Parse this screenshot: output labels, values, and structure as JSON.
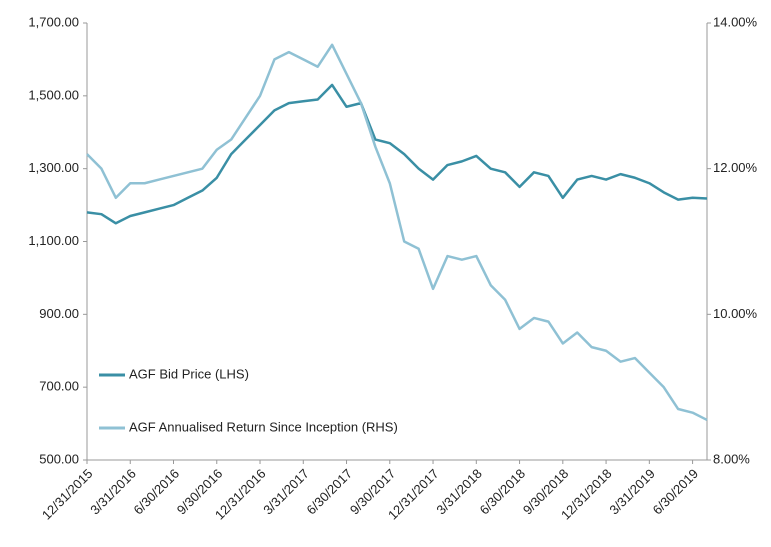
{
  "chart_data": {
    "type": "line",
    "categories": [
      "12/31/2015",
      null,
      null,
      "3/31/2016",
      null,
      null,
      "6/30/2016",
      null,
      null,
      "9/30/2016",
      null,
      null,
      "12/31/2016",
      null,
      null,
      "3/31/2017",
      null,
      null,
      "6/30/2017",
      null,
      null,
      "9/30/2017",
      null,
      null,
      "12/31/2017",
      null,
      null,
      "3/31/2018",
      null,
      null,
      "6/30/2018",
      null,
      null,
      "9/30/2018",
      null,
      null,
      "12/31/2018",
      null,
      null,
      "3/31/2019",
      null,
      null,
      "6/30/2019",
      null
    ],
    "series": [
      {
        "name": "AGF Bid Price (LHS)",
        "color": "#3a8fa5",
        "axis": "y",
        "values": [
          1180,
          1175,
          1150,
          1170,
          1180,
          1190,
          1200,
          1220,
          1240,
          1275,
          1340,
          1380,
          1420,
          1460,
          1480,
          1485,
          1490,
          1530,
          1470,
          1480,
          1380,
          1370,
          1340,
          1300,
          1270,
          1310,
          1320,
          1335,
          1300,
          1290,
          1250,
          1290,
          1280,
          1220,
          1270,
          1280,
          1270,
          1285,
          1275,
          1260,
          1235,
          1215,
          1220,
          1218
        ]
      },
      {
        "name": "AGF Annualised Return Since Inception (RHS)",
        "color": "#8fc1d4",
        "axis": "y2",
        "values": [
          12.2,
          12.0,
          11.6,
          11.8,
          11.8,
          11.85,
          11.9,
          11.95,
          12.0,
          12.26,
          12.4,
          12.7,
          13.0,
          13.5,
          13.6,
          13.5,
          13.4,
          13.7,
          13.3,
          12.9,
          12.3,
          11.8,
          11.0,
          10.9,
          10.35,
          10.8,
          10.75,
          10.8,
          10.4,
          10.2,
          9.8,
          9.95,
          9.9,
          9.6,
          9.75,
          9.55,
          9.5,
          9.35,
          9.4,
          9.2,
          9.0,
          8.7,
          8.65,
          8.55
        ]
      }
    ],
    "ylim": [
      500,
      1700
    ],
    "yticks": [
      {
        "value": 500,
        "label": "500.00"
      },
      {
        "value": 700,
        "label": "700.00"
      },
      {
        "value": 900,
        "label": "900.00"
      },
      {
        "value": 1100,
        "label": "1,100.00"
      },
      {
        "value": 1300,
        "label": "1,300.00"
      },
      {
        "value": 1500,
        "label": "1,500.00"
      },
      {
        "value": 1700,
        "label": "1,700.00"
      }
    ],
    "y2lim": [
      8,
      14
    ],
    "y2ticks": [
      {
        "value": 8,
        "label": "8.00%"
      },
      {
        "value": 10,
        "label": "10.00%"
      },
      {
        "value": 12,
        "label": "12.00%"
      },
      {
        "value": 14,
        "label": "14.00%"
      }
    ],
    "legend": "left"
  }
}
